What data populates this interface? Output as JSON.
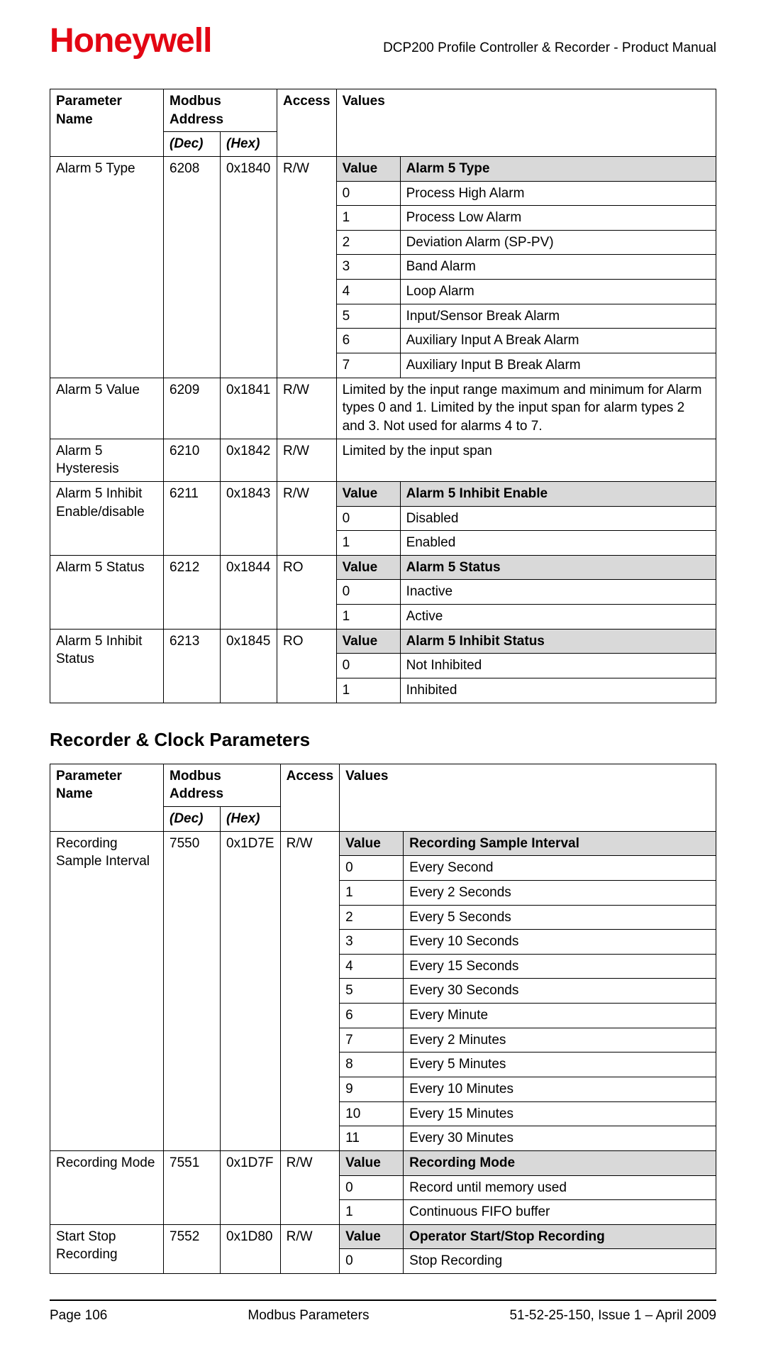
{
  "header": {
    "logo_text": "Honeywell",
    "doc_title": "DCP200 Profile Controller & Recorder - Product Manual"
  },
  "colors": {
    "logo": "#e30613",
    "nested_header_bg": "#d9d9d9",
    "border": "#000000",
    "text": "#000000",
    "background": "#ffffff"
  },
  "table1": {
    "headers": {
      "name": "Parameter Name",
      "modbus": "Modbus Address",
      "dec": "(Dec)",
      "hex": "(Hex)",
      "access": "Access",
      "values": "Values"
    },
    "rows": [
      {
        "name": "Alarm 5 Type",
        "dec": "6208",
        "hex": "0x1840",
        "access": "R/W",
        "nested_header": {
          "value": "Value",
          "label": "Alarm 5 Type"
        },
        "nested": [
          {
            "v": "0",
            "d": "Process High Alarm"
          },
          {
            "v": "1",
            "d": "Process Low Alarm"
          },
          {
            "v": "2",
            "d": "Deviation Alarm (SP-PV)"
          },
          {
            "v": "3",
            "d": "Band Alarm"
          },
          {
            "v": "4",
            "d": "Loop Alarm"
          },
          {
            "v": "5",
            "d": "Input/Sensor Break Alarm"
          },
          {
            "v": "6",
            "d": "Auxiliary Input A Break Alarm"
          },
          {
            "v": "7",
            "d": "Auxiliary Input B Break Alarm"
          }
        ]
      },
      {
        "name": "Alarm 5 Value",
        "dec": "6209",
        "hex": "0x1841",
        "access": "R/W",
        "text": "Limited by the input range maximum and minimum for Alarm types 0 and 1. Limited by the input span for alarm types 2 and 3. Not used for alarms 4 to 7."
      },
      {
        "name": "Alarm 5 Hysteresis",
        "dec": "6210",
        "hex": "0x1842",
        "access": "R/W",
        "text": "Limited by the input span"
      },
      {
        "name": "Alarm 5 Inhibit Enable/disable",
        "dec": "6211",
        "hex": "0x1843",
        "access": "R/W",
        "nested_header": {
          "value": "Value",
          "label": "Alarm 5 Inhibit Enable"
        },
        "nested": [
          {
            "v": "0",
            "d": "Disabled"
          },
          {
            "v": "1",
            "d": "Enabled"
          }
        ]
      },
      {
        "name": "Alarm 5 Status",
        "dec": "6212",
        "hex": "0x1844",
        "access": "RO",
        "nested_header": {
          "value": "Value",
          "label": "Alarm 5 Status"
        },
        "nested": [
          {
            "v": "0",
            "d": "Inactive"
          },
          {
            "v": "1",
            "d": "Active"
          }
        ]
      },
      {
        "name": "Alarm 5 Inhibit Status",
        "dec": "6213",
        "hex": "0x1845",
        "access": "RO",
        "nested_header": {
          "value": "Value",
          "label": "Alarm 5 Inhibit Status"
        },
        "nested": [
          {
            "v": "0",
            "d": "Not Inhibited"
          },
          {
            "v": "1",
            "d": "Inhibited"
          }
        ]
      }
    ]
  },
  "section_heading": "Recorder & Clock Parameters",
  "table2": {
    "headers": {
      "name": "Parameter Name",
      "modbus": "Modbus Address",
      "dec": "(Dec)",
      "hex": "(Hex)",
      "access": "Access",
      "values": "Values"
    },
    "rows": [
      {
        "name": "Recording Sample Interval",
        "dec": "7550",
        "hex": "0x1D7E",
        "access": "R/W",
        "nested_header": {
          "value": "Value",
          "label": "Recording Sample Interval"
        },
        "nested": [
          {
            "v": "0",
            "d": "Every Second"
          },
          {
            "v": "1",
            "d": "Every 2 Seconds"
          },
          {
            "v": "2",
            "d": "Every 5 Seconds"
          },
          {
            "v": "3",
            "d": "Every 10 Seconds"
          },
          {
            "v": "4",
            "d": "Every 15 Seconds"
          },
          {
            "v": "5",
            "d": "Every 30 Seconds"
          },
          {
            "v": "6",
            "d": "Every Minute"
          },
          {
            "v": "7",
            "d": "Every 2 Minutes"
          },
          {
            "v": "8",
            "d": "Every 5 Minutes"
          },
          {
            "v": "9",
            "d": "Every 10 Minutes"
          },
          {
            "v": "10",
            "d": "Every 15 Minutes"
          },
          {
            "v": "11",
            "d": "Every 30 Minutes"
          }
        ]
      },
      {
        "name": "Recording Mode",
        "dec": "7551",
        "hex": "0x1D7F",
        "access": "R/W",
        "nested_header": {
          "value": "Value",
          "label": "Recording Mode"
        },
        "nested": [
          {
            "v": "0",
            "d": "Record until memory used"
          },
          {
            "v": "1",
            "d": "Continuous FIFO buffer"
          }
        ]
      },
      {
        "name": "Start Stop Recording",
        "dec": "7552",
        "hex": "0x1D80",
        "access": "R/W",
        "nested_header": {
          "value": "Value",
          "label": "Operator Start/Stop Recording"
        },
        "nested": [
          {
            "v": "0",
            "d": "Stop Recording"
          }
        ]
      }
    ]
  },
  "footer": {
    "page": "Page 106",
    "center": "Modbus Parameters",
    "right": "51-52-25-150, Issue 1 – April 2009"
  }
}
